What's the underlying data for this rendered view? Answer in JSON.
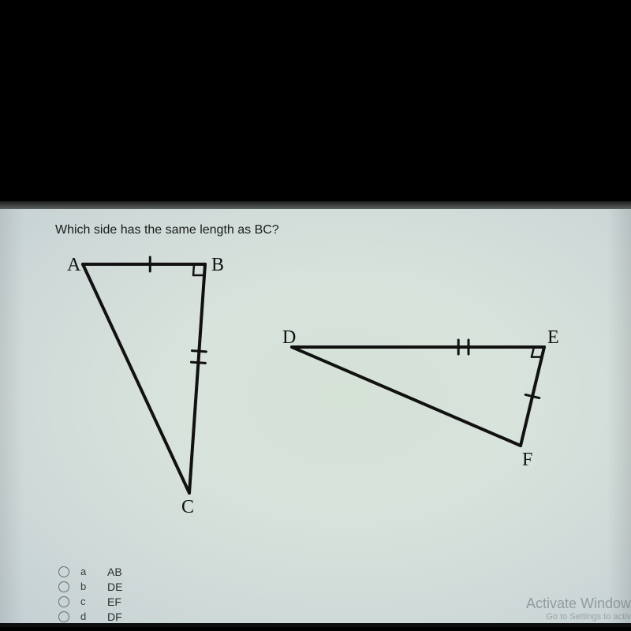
{
  "question": "Which side has the same length as BC?",
  "options": [
    {
      "letter": "a",
      "value": "AB"
    },
    {
      "letter": "b",
      "value": "DE"
    },
    {
      "letter": "c",
      "value": "EF"
    },
    {
      "letter": "d",
      "value": "DF"
    }
  ],
  "watermark": {
    "line1": "Activate Window",
    "line2": "Go to Settings to activ"
  },
  "triangle1": {
    "labels": {
      "A": "A",
      "B": "B",
      "C": "C"
    },
    "points": {
      "A": [
        55,
        30
      ],
      "B": [
        210,
        30
      ],
      "C": [
        190,
        320
      ]
    },
    "label_pos": {
      "A": [
        35,
        38
      ],
      "B": [
        218,
        38
      ],
      "C": [
        180,
        345
      ]
    },
    "tick_single_side": "AB",
    "tick_double_side": "BC"
  },
  "triangle2": {
    "labels": {
      "D": "D",
      "E": "E",
      "F": "F"
    },
    "points": {
      "D": [
        320,
        135
      ],
      "E": [
        640,
        135
      ],
      "F": [
        610,
        260
      ]
    },
    "label_pos": {
      "D": [
        308,
        130
      ],
      "E": [
        644,
        130
      ],
      "F": [
        612,
        285
      ]
    },
    "tick_single_side": "EF",
    "tick_double_side": "DE"
  },
  "style": {
    "stroke": "#101110",
    "stroke_width": 4,
    "tick_stroke_width": 3,
    "tick_half_len": 9,
    "tick_gap": 6,
    "label_font": "24px 'Comic Sans MS', 'Segoe Script', cursive",
    "label_fill": "#111"
  }
}
